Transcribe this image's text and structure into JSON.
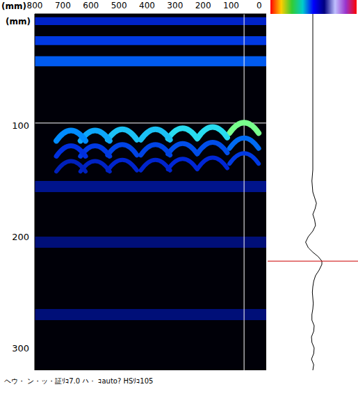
{
  "chart_data": {
    "type": "heatmap",
    "x_label": "(mm)",
    "y_label": "(mm)",
    "xlim": [
      -25,
      800
    ],
    "xticks": [
      0,
      100,
      200,
      300,
      400,
      500,
      600,
      700,
      800
    ],
    "ylim": [
      0,
      320
    ],
    "yticks": [
      100,
      200,
      300
    ],
    "reflections": {
      "x": [
        54,
        166,
        273,
        370,
        488,
        585,
        671
      ],
      "depth": [
        97,
        101,
        102,
        103,
        103,
        104,
        104
      ],
      "intensity": [
        1.0,
        0.85,
        0.85,
        0.8,
        0.8,
        0.75,
        0.7
      ]
    },
    "layers": [
      {
        "top": 3,
        "bottom": 10,
        "intensity": 0.35
      },
      {
        "top": 20,
        "bottom": 28,
        "intensity": 0.45
      },
      {
        "top": 38,
        "bottom": 47,
        "intensity": 0.55
      },
      {
        "top": 150,
        "bottom": 160,
        "intensity": 0.2
      },
      {
        "top": 200,
        "bottom": 210,
        "intensity": 0.15
      },
      {
        "top": 265,
        "bottom": 275,
        "intensity": 0.15
      }
    ],
    "cursor": {
      "x": 54,
      "depth": 98
    },
    "trace": {
      "amplitude_lim": [
        -1,
        1
      ],
      "depth": [
        0,
        5,
        10,
        15,
        20,
        25,
        30,
        35,
        40,
        45,
        50,
        55,
        60,
        65,
        70,
        75,
        80,
        85,
        90,
        95,
        98,
        102,
        106,
        110,
        115,
        120,
        125,
        130,
        135,
        140,
        145,
        150,
        155,
        160,
        170,
        180,
        200,
        240,
        280,
        320
      ],
      "amplitude": [
        0.0,
        0.02,
        -0.03,
        0.02,
        0.03,
        -0.02,
        -0.03,
        0.02,
        0.03,
        -0.02,
        -0.02,
        0.0,
        0.01,
        0.0,
        -0.01,
        0.0,
        0.02,
        0.06,
        0.14,
        0.2,
        0.2,
        0.12,
        0.0,
        -0.1,
        -0.16,
        -0.1,
        0.0,
        0.06,
        0.04,
        0.0,
        0.05,
        0.08,
        0.04,
        0.0,
        -0.02,
        0.0,
        0.0,
        0.0,
        0.0,
        0.0
      ]
    },
    "footer": "ヘウ・ ン・ッ・証ﾘｺ7.0 ハ・ ｺauto? HSﾘｺ105",
    "tick_labels": true,
    "grid": false
  }
}
